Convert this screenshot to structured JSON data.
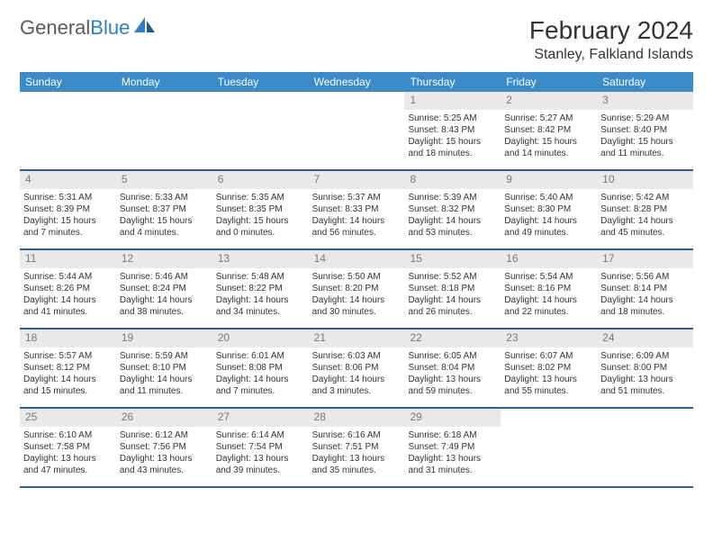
{
  "logo": {
    "text_gray": "General",
    "text_blue": "Blue"
  },
  "header": {
    "month_title": "February 2024",
    "location": "Stanley, Falkland Islands"
  },
  "colors": {
    "header_bar": "#3b8bc9",
    "header_text": "#ffffff",
    "row_divider": "#2d5f8f",
    "daynum_bg": "#e9e9e9",
    "daynum_text": "#7a7a7a",
    "body_text": "#333333",
    "logo_gray": "#5a5a5a",
    "logo_blue": "#2d7fc1"
  },
  "weekdays": [
    "Sunday",
    "Monday",
    "Tuesday",
    "Wednesday",
    "Thursday",
    "Friday",
    "Saturday"
  ],
  "weeks": [
    [
      {
        "empty": true
      },
      {
        "empty": true
      },
      {
        "empty": true
      },
      {
        "empty": true
      },
      {
        "num": "1",
        "sunrise": "Sunrise: 5:25 AM",
        "sunset": "Sunset: 8:43 PM",
        "daylight": "Daylight: 15 hours and 18 minutes."
      },
      {
        "num": "2",
        "sunrise": "Sunrise: 5:27 AM",
        "sunset": "Sunset: 8:42 PM",
        "daylight": "Daylight: 15 hours and 14 minutes."
      },
      {
        "num": "3",
        "sunrise": "Sunrise: 5:29 AM",
        "sunset": "Sunset: 8:40 PM",
        "daylight": "Daylight: 15 hours and 11 minutes."
      }
    ],
    [
      {
        "num": "4",
        "sunrise": "Sunrise: 5:31 AM",
        "sunset": "Sunset: 8:39 PM",
        "daylight": "Daylight: 15 hours and 7 minutes."
      },
      {
        "num": "5",
        "sunrise": "Sunrise: 5:33 AM",
        "sunset": "Sunset: 8:37 PM",
        "daylight": "Daylight: 15 hours and 4 minutes."
      },
      {
        "num": "6",
        "sunrise": "Sunrise: 5:35 AM",
        "sunset": "Sunset: 8:35 PM",
        "daylight": "Daylight: 15 hours and 0 minutes."
      },
      {
        "num": "7",
        "sunrise": "Sunrise: 5:37 AM",
        "sunset": "Sunset: 8:33 PM",
        "daylight": "Daylight: 14 hours and 56 minutes."
      },
      {
        "num": "8",
        "sunrise": "Sunrise: 5:39 AM",
        "sunset": "Sunset: 8:32 PM",
        "daylight": "Daylight: 14 hours and 53 minutes."
      },
      {
        "num": "9",
        "sunrise": "Sunrise: 5:40 AM",
        "sunset": "Sunset: 8:30 PM",
        "daylight": "Daylight: 14 hours and 49 minutes."
      },
      {
        "num": "10",
        "sunrise": "Sunrise: 5:42 AM",
        "sunset": "Sunset: 8:28 PM",
        "daylight": "Daylight: 14 hours and 45 minutes."
      }
    ],
    [
      {
        "num": "11",
        "sunrise": "Sunrise: 5:44 AM",
        "sunset": "Sunset: 8:26 PM",
        "daylight": "Daylight: 14 hours and 41 minutes."
      },
      {
        "num": "12",
        "sunrise": "Sunrise: 5:46 AM",
        "sunset": "Sunset: 8:24 PM",
        "daylight": "Daylight: 14 hours and 38 minutes."
      },
      {
        "num": "13",
        "sunrise": "Sunrise: 5:48 AM",
        "sunset": "Sunset: 8:22 PM",
        "daylight": "Daylight: 14 hours and 34 minutes."
      },
      {
        "num": "14",
        "sunrise": "Sunrise: 5:50 AM",
        "sunset": "Sunset: 8:20 PM",
        "daylight": "Daylight: 14 hours and 30 minutes."
      },
      {
        "num": "15",
        "sunrise": "Sunrise: 5:52 AM",
        "sunset": "Sunset: 8:18 PM",
        "daylight": "Daylight: 14 hours and 26 minutes."
      },
      {
        "num": "16",
        "sunrise": "Sunrise: 5:54 AM",
        "sunset": "Sunset: 8:16 PM",
        "daylight": "Daylight: 14 hours and 22 minutes."
      },
      {
        "num": "17",
        "sunrise": "Sunrise: 5:56 AM",
        "sunset": "Sunset: 8:14 PM",
        "daylight": "Daylight: 14 hours and 18 minutes."
      }
    ],
    [
      {
        "num": "18",
        "sunrise": "Sunrise: 5:57 AM",
        "sunset": "Sunset: 8:12 PM",
        "daylight": "Daylight: 14 hours and 15 minutes."
      },
      {
        "num": "19",
        "sunrise": "Sunrise: 5:59 AM",
        "sunset": "Sunset: 8:10 PM",
        "daylight": "Daylight: 14 hours and 11 minutes."
      },
      {
        "num": "20",
        "sunrise": "Sunrise: 6:01 AM",
        "sunset": "Sunset: 8:08 PM",
        "daylight": "Daylight: 14 hours and 7 minutes."
      },
      {
        "num": "21",
        "sunrise": "Sunrise: 6:03 AM",
        "sunset": "Sunset: 8:06 PM",
        "daylight": "Daylight: 14 hours and 3 minutes."
      },
      {
        "num": "22",
        "sunrise": "Sunrise: 6:05 AM",
        "sunset": "Sunset: 8:04 PM",
        "daylight": "Daylight: 13 hours and 59 minutes."
      },
      {
        "num": "23",
        "sunrise": "Sunrise: 6:07 AM",
        "sunset": "Sunset: 8:02 PM",
        "daylight": "Daylight: 13 hours and 55 minutes."
      },
      {
        "num": "24",
        "sunrise": "Sunrise: 6:09 AM",
        "sunset": "Sunset: 8:00 PM",
        "daylight": "Daylight: 13 hours and 51 minutes."
      }
    ],
    [
      {
        "num": "25",
        "sunrise": "Sunrise: 6:10 AM",
        "sunset": "Sunset: 7:58 PM",
        "daylight": "Daylight: 13 hours and 47 minutes."
      },
      {
        "num": "26",
        "sunrise": "Sunrise: 6:12 AM",
        "sunset": "Sunset: 7:56 PM",
        "daylight": "Daylight: 13 hours and 43 minutes."
      },
      {
        "num": "27",
        "sunrise": "Sunrise: 6:14 AM",
        "sunset": "Sunset: 7:54 PM",
        "daylight": "Daylight: 13 hours and 39 minutes."
      },
      {
        "num": "28",
        "sunrise": "Sunrise: 6:16 AM",
        "sunset": "Sunset: 7:51 PM",
        "daylight": "Daylight: 13 hours and 35 minutes."
      },
      {
        "num": "29",
        "sunrise": "Sunrise: 6:18 AM",
        "sunset": "Sunset: 7:49 PM",
        "daylight": "Daylight: 13 hours and 31 minutes."
      },
      {
        "empty": true
      },
      {
        "empty": true
      }
    ]
  ]
}
